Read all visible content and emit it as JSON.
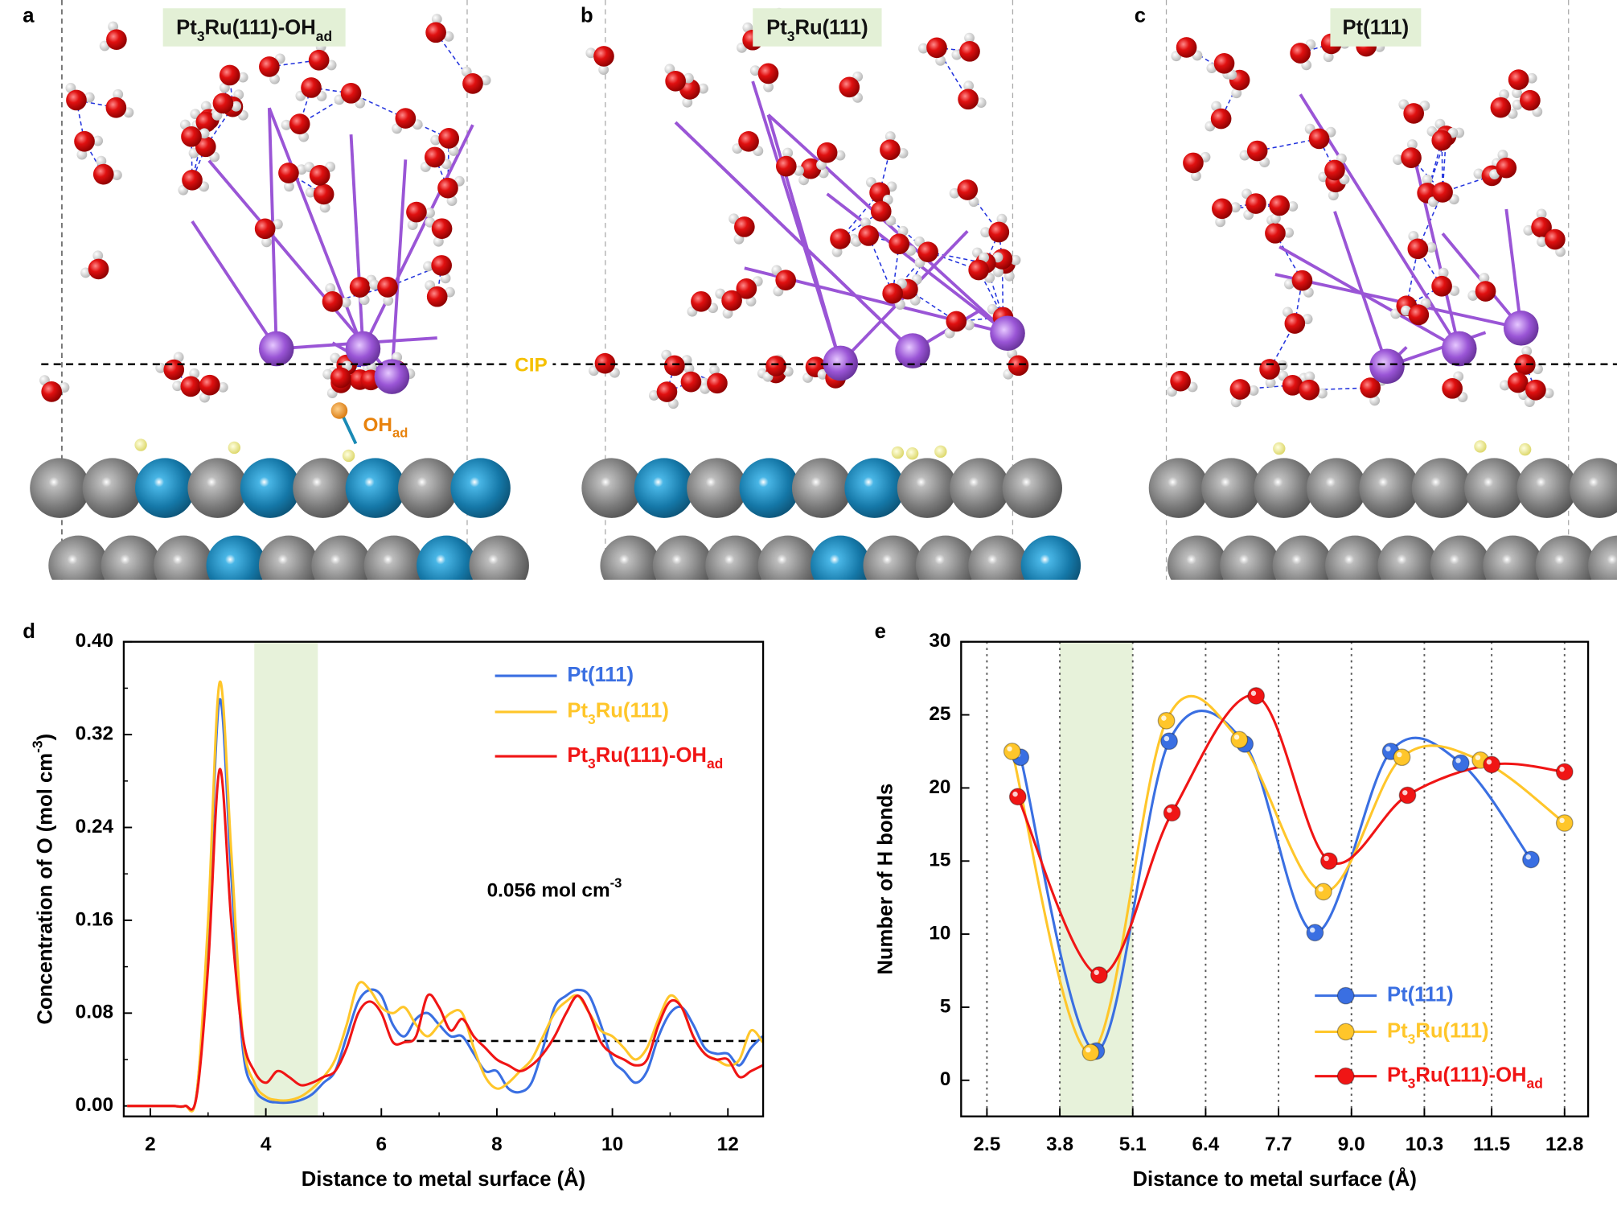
{
  "structure_panels": [
    {
      "label": "a",
      "title": "Pt3Ru(111)-OHad"
    },
    {
      "label": "b",
      "title": "Pt3Ru(111)"
    },
    {
      "label": "c",
      "title": "Pt(111)"
    }
  ],
  "cip_label": "CIP",
  "adsorbate_label": "OHad",
  "chart_data": [
    {
      "type": "line",
      "label": "d",
      "x_label": "Distance to metal surface (Å)",
      "y_label": "Concentration of O (mol cm-3)",
      "xlim": [
        1.54,
        12.61
      ],
      "xticks": [
        2,
        4,
        6,
        8,
        10,
        12
      ],
      "ylim": [
        -0.009,
        0.4
      ],
      "yticks": [
        {
          "value": 0,
          "label": "0.00"
        },
        {
          "value": 0.08,
          "label": "0.08"
        },
        {
          "value": 0.16,
          "label": "0.16"
        },
        {
          "value": 0.24,
          "label": "0.24"
        },
        {
          "value": 0.32,
          "label": "0.32"
        },
        {
          "value": 0.4,
          "label": "0.40"
        }
      ],
      "highlight_band": [
        3.8,
        4.9
      ],
      "band_color": "#e7f2da",
      "reference_line": {
        "value": 0.056,
        "x_start": 6.4
      },
      "annotation": "0.056 mol cm-3",
      "legend": "upper right",
      "x": [
        1.6,
        1.8,
        2.0,
        2.2,
        2.4,
        2.6,
        2.8,
        3.0,
        3.2,
        3.4,
        3.6,
        3.8,
        4.0,
        4.2,
        4.4,
        4.6,
        4.8,
        5.0,
        5.2,
        5.4,
        5.6,
        5.8,
        6.0,
        6.2,
        6.4,
        6.6,
        6.8,
        7.0,
        7.2,
        7.4,
        7.6,
        7.8,
        8.0,
        8.2,
        8.4,
        8.6,
        8.8,
        9.0,
        9.2,
        9.4,
        9.6,
        9.8,
        10.0,
        10.2,
        10.4,
        10.6,
        10.8,
        11.0,
        11.2,
        11.4,
        11.6,
        11.8,
        12.0,
        12.2,
        12.4,
        12.6
      ],
      "series": [
        {
          "name": "Pt(111)",
          "color": "#3a6fe2",
          "values": [
            0,
            0,
            0,
            0,
            0,
            0,
            0.01,
            0.15,
            0.35,
            0.2,
            0.05,
            0.015,
            0.005,
            0.003,
            0.003,
            0.005,
            0.01,
            0.02,
            0.03,
            0.06,
            0.09,
            0.1,
            0.095,
            0.07,
            0.06,
            0.075,
            0.08,
            0.07,
            0.06,
            0.06,
            0.045,
            0.03,
            0.03,
            0.015,
            0.012,
            0.02,
            0.05,
            0.085,
            0.095,
            0.1,
            0.095,
            0.07,
            0.04,
            0.03,
            0.02,
            0.03,
            0.06,
            0.08,
            0.085,
            0.07,
            0.05,
            0.045,
            0.045,
            0.035,
            0.05,
            0.06
          ]
        },
        {
          "name": "Pt3Ru(111)",
          "color": "#ffc62a",
          "values": [
            0,
            0,
            0,
            0,
            0,
            0,
            0.01,
            0.16,
            0.365,
            0.22,
            0.06,
            0.02,
            0.008,
            0.005,
            0.005,
            0.008,
            0.015,
            0.025,
            0.04,
            0.07,
            0.105,
            0.1,
            0.085,
            0.08,
            0.085,
            0.07,
            0.06,
            0.07,
            0.08,
            0.08,
            0.05,
            0.025,
            0.015,
            0.02,
            0.03,
            0.04,
            0.06,
            0.08,
            0.09,
            0.095,
            0.08,
            0.065,
            0.06,
            0.05,
            0.04,
            0.05,
            0.075,
            0.095,
            0.085,
            0.06,
            0.045,
            0.04,
            0.035,
            0.04,
            0.065,
            0.055
          ]
        },
        {
          "name": "Pt3Ru(111)-OHad",
          "color": "#f01515",
          "values": [
            0,
            0,
            0,
            0,
            0,
            0,
            0.008,
            0.12,
            0.29,
            0.16,
            0.06,
            0.03,
            0.02,
            0.03,
            0.025,
            0.018,
            0.02,
            0.025,
            0.03,
            0.05,
            0.08,
            0.09,
            0.08,
            0.055,
            0.055,
            0.06,
            0.095,
            0.085,
            0.065,
            0.075,
            0.06,
            0.05,
            0.04,
            0.035,
            0.03,
            0.035,
            0.045,
            0.06,
            0.08,
            0.095,
            0.08,
            0.055,
            0.045,
            0.04,
            0.035,
            0.04,
            0.07,
            0.09,
            0.085,
            0.06,
            0.045,
            0.04,
            0.04,
            0.025,
            0.03,
            0.035
          ]
        }
      ]
    },
    {
      "type": "line",
      "label": "e",
      "x_label": "Distance to metal surface (Å)",
      "y_label": "Number of H bonds",
      "xlim": [
        2.04,
        13.22
      ],
      "xticks": [
        2.5,
        3.8,
        5.1,
        6.4,
        7.7,
        {
          "value": 9,
          "label": "9.0"
        },
        10.3,
        11.5,
        12.8
      ],
      "ylim": [
        -2.47,
        30
      ],
      "yticks": [
        0,
        5,
        10,
        15,
        20,
        25,
        30
      ],
      "grid": "x",
      "highlight_band": [
        3.8,
        5.1
      ],
      "band_color": "#e7f2da",
      "markers": true,
      "legend": "lower right",
      "series": [
        {
          "name": "Pt(111)",
          "color": "#3a6fe2",
          "x": [
            3.1,
            4.45,
            5.75,
            7.1,
            8.35,
            9.7,
            10.95,
            12.2
          ],
          "values": [
            22.1,
            2.0,
            23.2,
            23.0,
            10.1,
            22.5,
            21.7,
            15.1
          ]
        },
        {
          "name": "Pt3Ru(111)",
          "color": "#ffc62a",
          "x": [
            2.95,
            4.35,
            5.7,
            7.0,
            8.5,
            9.9,
            11.3,
            12.8
          ],
          "values": [
            22.5,
            1.9,
            24.6,
            23.3,
            12.9,
            22.1,
            21.9,
            17.6
          ]
        },
        {
          "name": "Pt3Ru(111)-OHad",
          "color": "#f01515",
          "x": [
            3.05,
            4.5,
            5.8,
            7.3,
            8.6,
            10.0,
            11.5,
            12.8
          ],
          "values": [
            19.4,
            7.2,
            18.3,
            26.3,
            15.0,
            19.5,
            21.6,
            21.1
          ]
        }
      ]
    }
  ]
}
